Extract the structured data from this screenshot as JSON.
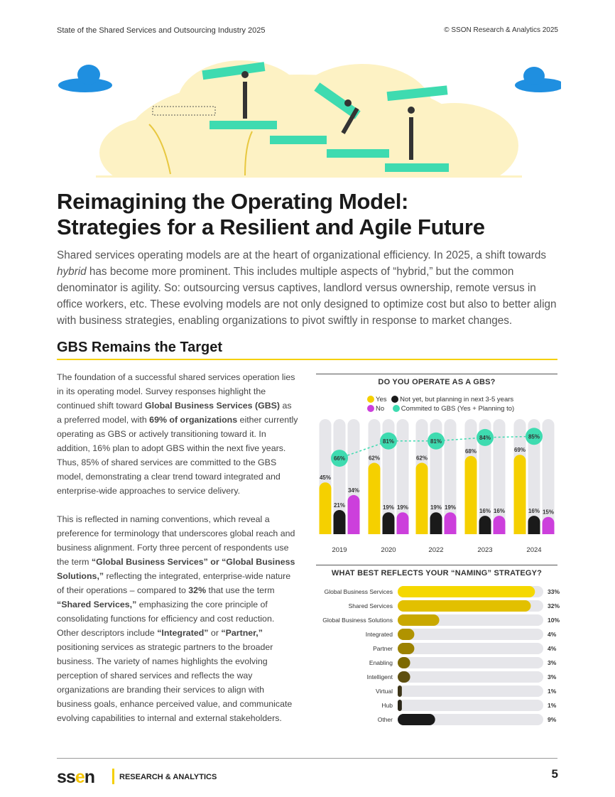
{
  "header": {
    "left": "State of the Shared Services and Outsourcing Industry 2025",
    "right": "© SSON Research & Analytics 2025"
  },
  "title_line1": "Reimagining the Operating Model:",
  "title_line2": "Strategies for a Resilient and Agile Future",
  "intro": {
    "p1": "Shared services operating models are at the heart of organizational efficiency. In 2025, a shift towards ",
    "em": "hybrid",
    "p2": " has become more prominent. This includes multiple aspects of “hybrid,” but the common denominator is agility. So: outsourcing versus captives, landlord versus ownership, remote versus in office workers, etc. These evolving models are not only designed to optimize cost but also to better align with business strategies, enabling organizations to pivot swiftly in response to market changes."
  },
  "section_title": "GBS Remains the Target",
  "para1": {
    "a": "The foundation of a successful shared services operation lies in its operating model. Survey responses highlight the continued shift toward ",
    "b1": "Global Business Services (GBS)",
    "c": " as a preferred model, with ",
    "b2": "69% of organizations",
    "d": " either currently operating as GBS or actively transitioning toward it. In addition, 16% plan to adopt GBS within the next five years. Thus, 85% of shared services are committed to the GBS model, demonstrating a clear trend toward integrated and enterprise-wide approaches to service delivery."
  },
  "para2": {
    "a": "This is reflected in naming conventions, which reveal a preference for terminology that underscores global reach and business alignment. Forty three percent of respondents use the term ",
    "b1": "“Global Business Services” or “Global Business Solutions,”",
    "c": " reflecting the integrated, enterprise-wide nature of their operations – compared to ",
    "b2": "32%",
    "d": " that use the term ",
    "b3": "“Shared Services,”",
    "e": " emphasizing the core principle of consolidating functions for efficiency and cost reduction. Other descriptors include ",
    "b4": "“Integrated”",
    "f": " or ",
    "b5": "“Partner,”",
    "g": " positioning services as strategic partners to the broader business. The variety of names highlights the evolving perception of shared services and reflects the way organizations are branding their services to align with business goals, enhance perceived value, and communicate evolving capabilities to internal and external stakeholders."
  },
  "chart_data": [
    {
      "type": "bar",
      "title": "DO YOU OPERATE AS A GBS?",
      "categories": [
        "2019",
        "2020",
        "2022",
        "2023",
        "2024"
      ],
      "ylim": [
        0,
        100
      ],
      "series": [
        {
          "name": "Yes",
          "color": "#f5d000",
          "values": [
            45,
            62,
            62,
            68,
            69
          ]
        },
        {
          "name": "Not yet, but planning in next 3-5 years",
          "color": "#1a1a1a",
          "values": [
            21,
            19,
            19,
            16,
            16
          ]
        },
        {
          "name": "No",
          "color": "#cc3fdc",
          "values": [
            34,
            19,
            19,
            16,
            15
          ]
        },
        {
          "name": "Commited to GBS (Yes + Planning to)",
          "color": "#3edbb0",
          "type": "line",
          "values": [
            66,
            81,
            81,
            84,
            85
          ]
        }
      ]
    },
    {
      "type": "bar",
      "orientation": "horizontal",
      "title": "WHAT BEST REFLECTS YOUR “NAMING” STRATEGY?",
      "categories": [
        "Global Business Services",
        "Shared Services",
        "Global Business Solutions",
        "Integrated",
        "Partner",
        "Enabling",
        "Intelligent",
        "Virtual",
        "Hub",
        "Other"
      ],
      "values": [
        33,
        32,
        10,
        4,
        4,
        3,
        3,
        1,
        1,
        9
      ],
      "xlim": [
        0,
        35
      ]
    }
  ],
  "footer": {
    "logo": "sson",
    "brand": "RESEARCH & ANALYTICS",
    "page": "5"
  }
}
